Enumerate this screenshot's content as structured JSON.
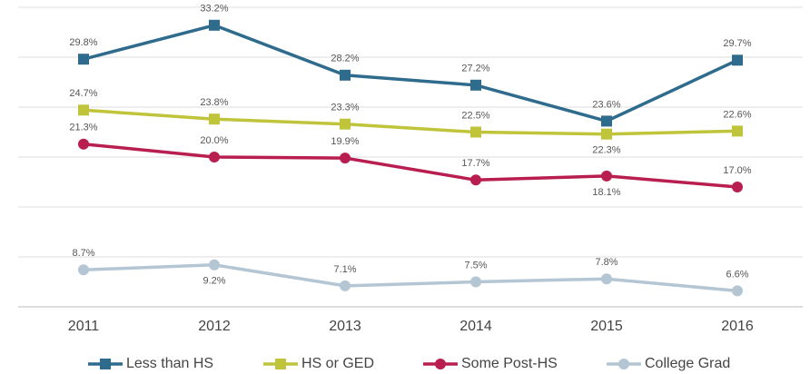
{
  "chart_data": {
    "type": "line",
    "categories": [
      "2011",
      "2012",
      "2013",
      "2014",
      "2015",
      "2016"
    ],
    "series": [
      {
        "name": "Less than HS",
        "color": "#2e6b8c",
        "marker": "square",
        "values": [
          29.8,
          33.2,
          28.2,
          27.2,
          23.6,
          29.7
        ],
        "value_labels": [
          "29.8%",
          "33.2%",
          "28.2%",
          "27.2%",
          "23.6%",
          "29.7%"
        ]
      },
      {
        "name": "HS or GED",
        "color": "#bfc43a",
        "marker": "square",
        "values": [
          24.7,
          23.8,
          23.3,
          22.5,
          22.3,
          22.6
        ],
        "value_labels": [
          "24.7%",
          "23.8%",
          "23.3%",
          "22.5%",
          "22.3%",
          "22.6%"
        ]
      },
      {
        "name": "Some Post-HS",
        "color": "#b81e4f",
        "marker": "circle",
        "values": [
          21.3,
          20.0,
          19.9,
          17.7,
          18.1,
          17.0
        ],
        "value_labels": [
          "21.3%",
          "20.0%",
          "19.9%",
          "17.7%",
          "18.1%",
          "17.0%"
        ]
      },
      {
        "name": "College Grad",
        "color": "#b4c5d3",
        "marker": "circle",
        "values": [
          8.7,
          9.2,
          7.1,
          7.5,
          7.8,
          6.6
        ],
        "value_labels": [
          "8.7%",
          "9.2%",
          "7.1%",
          "7.5%",
          "7.8%",
          "6.6%"
        ]
      }
    ],
    "ylim": [
      5,
      35
    ],
    "yticks": [
      5,
      10,
      15,
      20,
      25,
      30,
      35
    ],
    "grid": true,
    "legend": "bottom"
  }
}
